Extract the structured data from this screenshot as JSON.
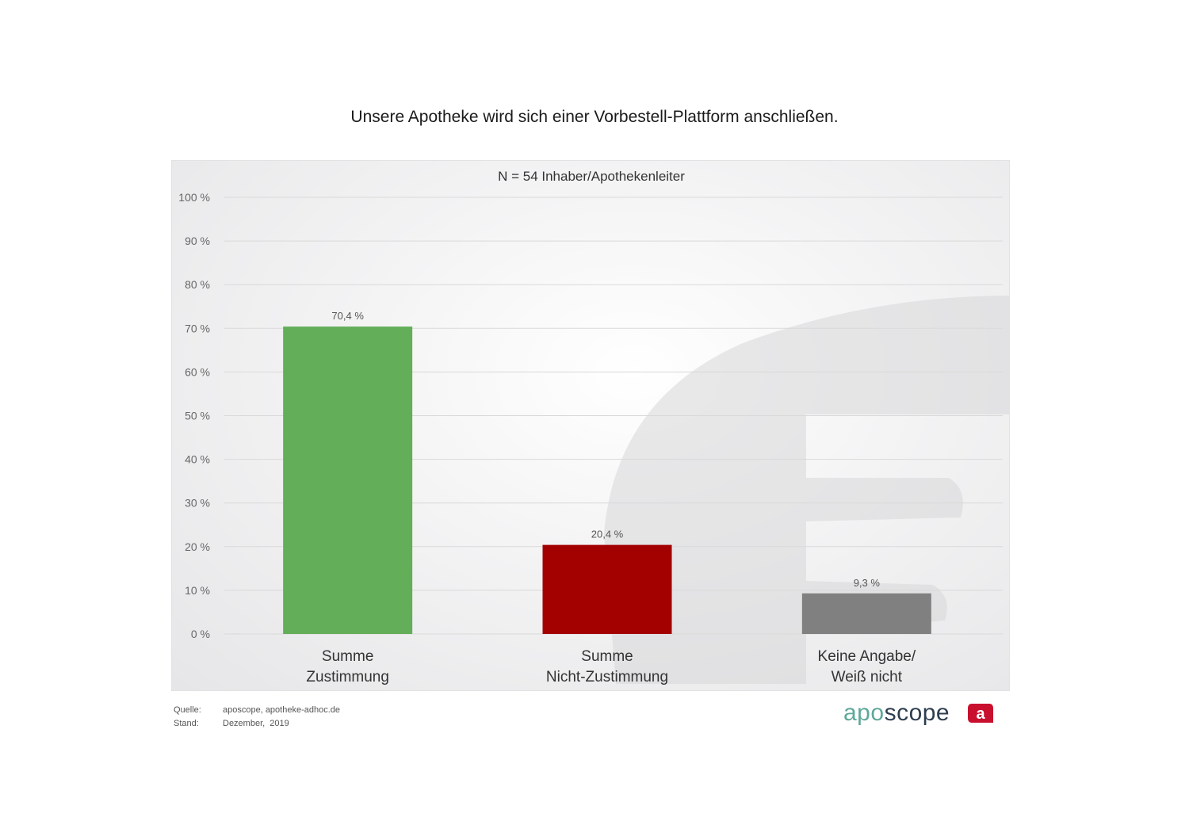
{
  "page": {
    "title": "Unsere Apotheke wird sich einer Vorbestell-Plattform anschließen.",
    "footer": {
      "source_label": "Quelle:",
      "source_value": "aposcope, apotheke-adhoc.de",
      "date_label": "Stand:",
      "date_value": "Dezember,  2019"
    },
    "logo": {
      "part1": "apo",
      "part2": "scope",
      "badge_letter": "a"
    }
  },
  "colors": {
    "green": "#63ae58",
    "red": "#a30000",
    "gray": "#808080",
    "grid": "#d9d9d9",
    "logo_apo": "#5fa89b",
    "logo_scope": "#2d3e50",
    "logo_badge": "#c8102e"
  },
  "chart_data": {
    "type": "bar",
    "subtitle": "N = 54 Inhaber/Apothekenleiter",
    "categories": [
      [
        "Summe",
        "Zustimmung"
      ],
      [
        "Summe",
        "Nicht-Zustimmung"
      ],
      [
        "Keine Angabe/",
        "Weiß nicht"
      ]
    ],
    "values": [
      70.4,
      20.4,
      9.3
    ],
    "value_labels": [
      "70,4 %",
      "20,4 %",
      "9,3 %"
    ],
    "bar_colors": [
      "#63ae58",
      "#a30000",
      "#808080"
    ],
    "ylim": [
      0,
      100
    ],
    "yticks": [
      0,
      10,
      20,
      30,
      40,
      50,
      60,
      70,
      80,
      90,
      100
    ],
    "ytick_labels": [
      "0 %",
      "10 %",
      "20 %",
      "30 %",
      "40 %",
      "50 %",
      "60 %",
      "70 %",
      "80 %",
      "90 %",
      "100 %"
    ],
    "grid": true,
    "legend": "none"
  }
}
